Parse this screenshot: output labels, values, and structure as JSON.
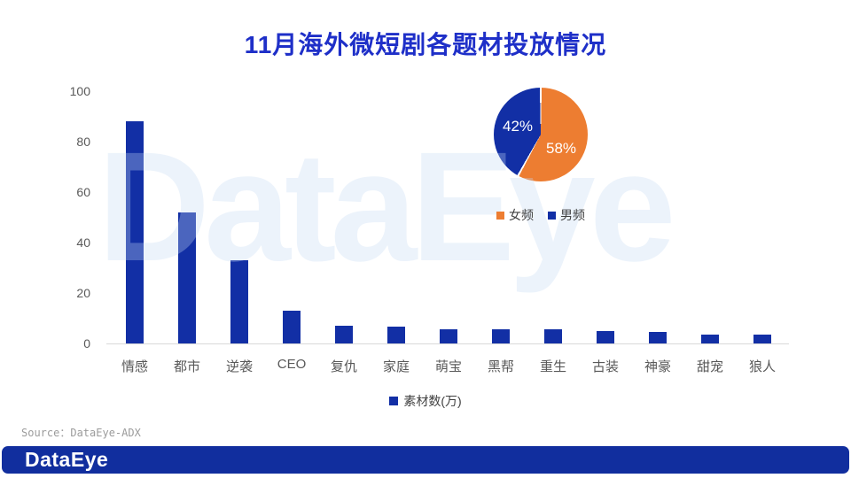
{
  "title": "11月海外微短剧各题材投放情况",
  "watermark": "DataEye",
  "source": "Source：DataEye-ADX",
  "footer": {
    "logo": "DataEye"
  },
  "colors": {
    "title_blue": "#1e2fc8",
    "bar_blue": "#122fa5",
    "pie_orange": "#ED7D31",
    "pie_blue": "#122fa5",
    "footer_blue": "#112e9e",
    "axis_gray": "#d9d9d9",
    "label_gray": "#595959",
    "watermark_blue": "rgba(196,219,243,0.32)"
  },
  "chart_data": [
    {
      "type": "bar",
      "legend": "素材数(万)",
      "categories": [
        "情感",
        "都市",
        "逆袭",
        "CEO",
        "复仇",
        "家庭",
        "萌宝",
        "黑帮",
        "重生",
        "古装",
        "神豪",
        "甜宠",
        "狼人"
      ],
      "values": [
        88,
        52,
        33,
        13,
        7,
        6.8,
        5.5,
        5.5,
        5.5,
        5,
        4.5,
        3.5,
        3.5
      ],
      "ylabel": "",
      "xlabel": "",
      "ylim": [
        0,
        100
      ],
      "yticks": [
        0,
        20,
        40,
        60,
        80,
        100
      ],
      "grid": false,
      "bar_color": "#122fa5",
      "legend_position": "bottom"
    },
    {
      "type": "pie",
      "slices": [
        {
          "label": "女频",
          "value": 58,
          "display": "58%",
          "color": "#ED7D31"
        },
        {
          "label": "男频",
          "value": 42,
          "display": "42%",
          "color": "#122fa5"
        }
      ],
      "start_angle_deg": 0,
      "direction": "clockwise",
      "legend_position": "bottom"
    }
  ]
}
